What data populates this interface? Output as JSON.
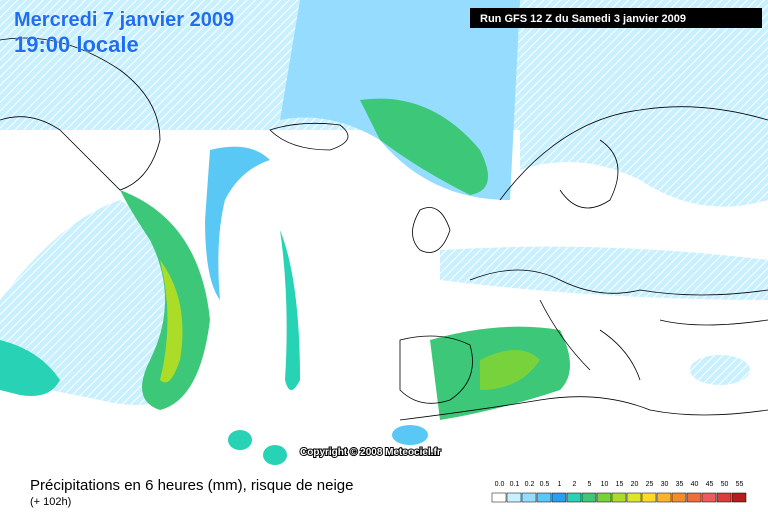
{
  "header": {
    "date": "Mercredi 7 janvier 2009",
    "time": "19:00 locale",
    "run": "Run GFS 12 Z du Samedi 3 janvier 2009"
  },
  "map": {
    "copyright": "Copyright © 2008 Meteociel.fr"
  },
  "footer": {
    "caption": "Précipitations en 6 heures (mm), risque de neige",
    "lead": "(+ 102h)"
  },
  "legend": {
    "items": [
      {
        "label": "0.0",
        "color": "#ffffff"
      },
      {
        "label": "0.1",
        "color": "#c8f0ff"
      },
      {
        "label": "0.2",
        "color": "#96dcff"
      },
      {
        "label": "0.5",
        "color": "#5ac8f5"
      },
      {
        "label": "1",
        "color": "#28a0f0"
      },
      {
        "label": "2",
        "color": "#28d2b4"
      },
      {
        "label": "5",
        "color": "#3cc878"
      },
      {
        "label": "10",
        "color": "#78d23c"
      },
      {
        "label": "15",
        "color": "#aadc28"
      },
      {
        "label": "20",
        "color": "#dce628"
      },
      {
        "label": "25",
        "color": "#fadc28"
      },
      {
        "label": "30",
        "color": "#fab428"
      },
      {
        "label": "35",
        "color": "#f58c28"
      },
      {
        "label": "40",
        "color": "#f06e3c"
      },
      {
        "label": "45",
        "color": "#f05a5a"
      },
      {
        "label": "50",
        "color": "#dc3c3c"
      },
      {
        "label": "55",
        "color": "#b41e1e"
      }
    ]
  }
}
